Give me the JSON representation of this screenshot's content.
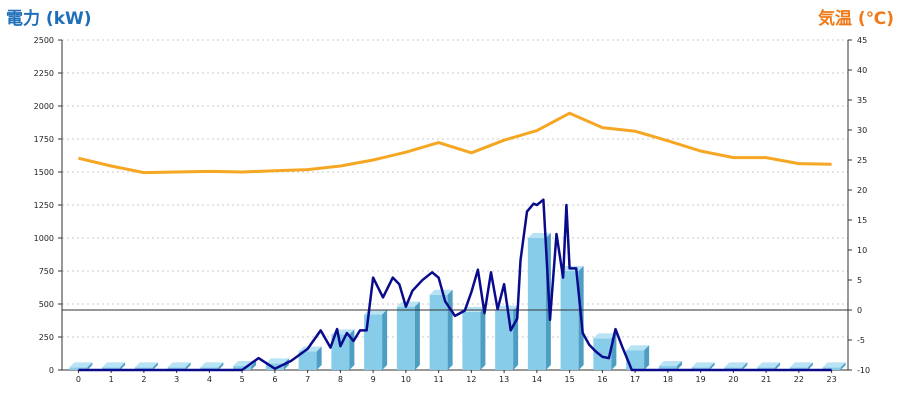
{
  "chart_data": {
    "type": "bar",
    "title_left": "電力 (kW)",
    "title_right": "気温 (℃)",
    "categories": [
      "0",
      "1",
      "2",
      "3",
      "4",
      "5",
      "6",
      "7",
      "8",
      "9",
      "10",
      "11",
      "12",
      "13",
      "14",
      "15",
      "16",
      "17",
      "18",
      "19",
      "20",
      "21",
      "22",
      "23"
    ],
    "y_left": {
      "min": 0,
      "max": 2500,
      "ticks": [
        0,
        250,
        500,
        750,
        1000,
        1250,
        1500,
        1750,
        2000,
        2250,
        2500
      ]
    },
    "y_right": {
      "min": -10,
      "max": 45,
      "ticks": [
        -10,
        -5,
        0,
        5,
        10,
        15,
        20,
        25,
        30,
        35,
        40,
        45
      ]
    },
    "grid": true,
    "bars": {
      "values": [
        20,
        20,
        20,
        20,
        20,
        30,
        50,
        140,
        270,
        420,
        480,
        570,
        440,
        450,
        1000,
        750,
        240,
        150,
        30,
        20,
        20,
        20,
        20,
        20
      ],
      "color": "#87cdea"
    },
    "power_line": {
      "color": "#0a0a8c",
      "x": [
        0,
        1,
        2,
        3,
        4,
        5,
        5.5,
        6,
        6.5,
        7,
        7.4,
        7.7,
        7.9,
        8,
        8.2,
        8.4,
        8.6,
        8.8,
        9,
        9.3,
        9.6,
        9.8,
        10,
        10.2,
        10.5,
        10.8,
        11,
        11.2,
        11.5,
        11.8,
        12,
        12.2,
        12.4,
        12.6,
        12.8,
        13,
        13.2,
        13.4,
        13.5,
        13.7,
        13.9,
        14,
        14.2,
        14.4,
        14.6,
        14.8,
        14.9,
        15,
        15.2,
        15.4,
        15.6,
        15.8,
        16,
        16.2,
        16.4,
        16.6,
        16.8,
        16.9,
        17,
        17.2,
        17.5,
        18,
        19,
        20,
        21,
        22,
        23
      ],
      "y": [
        0,
        0,
        0,
        0,
        0,
        0,
        90,
        10,
        70,
        160,
        300,
        170,
        310,
        180,
        280,
        220,
        300,
        300,
        700,
        550,
        700,
        650,
        480,
        600,
        680,
        740,
        700,
        520,
        410,
        450,
        590,
        760,
        430,
        740,
        460,
        650,
        300,
        390,
        830,
        1200,
        1260,
        1250,
        1290,
        380,
        1030,
        700,
        1250,
        770,
        770,
        280,
        190,
        140,
        100,
        90,
        310,
        180,
        60,
        0,
        0,
        0,
        0,
        0,
        0,
        0,
        0,
        0,
        0
      ]
    },
    "temp_line": {
      "color": "#f5a623",
      "x": [
        0,
        1,
        2,
        3,
        4,
        5,
        6,
        7,
        8,
        9,
        10,
        11,
        12,
        13,
        14,
        15,
        16,
        17,
        18,
        19,
        20,
        21,
        22,
        23
      ],
      "y": [
        25.3,
        24,
        22.9,
        23,
        23.1,
        23,
        23.2,
        23.4,
        24,
        25,
        26.3,
        27.9,
        26.2,
        28.3,
        29.9,
        32.8,
        30.4,
        29.8,
        28.2,
        26.5,
        25.4,
        25.4,
        24.4,
        24.3
      ]
    },
    "reference_line_value": 0
  }
}
